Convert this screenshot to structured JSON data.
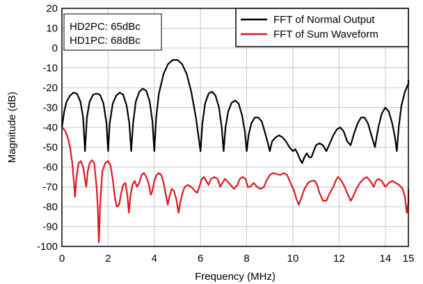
{
  "chart_data": {
    "type": "line",
    "xlabel": "Frequency (MHz)",
    "ylabel": "Magnitude (dB)",
    "xlim": [
      0,
      15
    ],
    "ylim": [
      -100,
      20
    ],
    "xticks": [
      0,
      2,
      4,
      6,
      8,
      10,
      12,
      14,
      15
    ],
    "yticks": [
      20,
      10,
      0,
      -10,
      -20,
      -30,
      -40,
      -50,
      -60,
      -70,
      -80,
      -90,
      -100
    ],
    "grid": true,
    "legend_position": "top-right",
    "annotations": [
      "HD2PC: 65dBc",
      "HD1PC: 68dBc"
    ],
    "series": [
      {
        "name": "FFT of Normal Output",
        "color": "#000000",
        "points": [
          [
            0,
            -40
          ],
          [
            0.1,
            -32
          ],
          [
            0.2,
            -27
          ],
          [
            0.35,
            -24
          ],
          [
            0.5,
            -22.5
          ],
          [
            0.65,
            -23
          ],
          [
            0.8,
            -27
          ],
          [
            0.92,
            -35
          ],
          [
            1.0,
            -52
          ],
          [
            1.08,
            -35
          ],
          [
            1.2,
            -27
          ],
          [
            1.35,
            -23.5
          ],
          [
            1.5,
            -23
          ],
          [
            1.65,
            -23.5
          ],
          [
            1.8,
            -28
          ],
          [
            1.93,
            -38
          ],
          [
            2.0,
            -52
          ],
          [
            2.07,
            -38
          ],
          [
            2.2,
            -28
          ],
          [
            2.35,
            -24
          ],
          [
            2.5,
            -22.5
          ],
          [
            2.65,
            -23.5
          ],
          [
            2.8,
            -29
          ],
          [
            2.92,
            -38
          ],
          [
            3.0,
            -52
          ],
          [
            3.08,
            -38
          ],
          [
            3.2,
            -27
          ],
          [
            3.35,
            -22
          ],
          [
            3.5,
            -20.5
          ],
          [
            3.65,
            -21.5
          ],
          [
            3.8,
            -27
          ],
          [
            3.92,
            -37
          ],
          [
            4.0,
            -52
          ],
          [
            4.08,
            -35
          ],
          [
            4.2,
            -23
          ],
          [
            4.4,
            -13
          ],
          [
            4.6,
            -8
          ],
          [
            4.8,
            -6
          ],
          [
            5.0,
            -6
          ],
          [
            5.2,
            -8
          ],
          [
            5.4,
            -13
          ],
          [
            5.6,
            -22
          ],
          [
            5.8,
            -35
          ],
          [
            5.92,
            -45
          ],
          [
            6.0,
            -52
          ],
          [
            6.08,
            -38
          ],
          [
            6.2,
            -28
          ],
          [
            6.35,
            -23
          ],
          [
            6.5,
            -22
          ],
          [
            6.65,
            -24
          ],
          [
            6.8,
            -30
          ],
          [
            6.92,
            -40
          ],
          [
            7.0,
            -52
          ],
          [
            7.08,
            -40
          ],
          [
            7.2,
            -32
          ],
          [
            7.35,
            -27.5
          ],
          [
            7.5,
            -26.5
          ],
          [
            7.65,
            -28
          ],
          [
            7.8,
            -34
          ],
          [
            7.92,
            -42
          ],
          [
            8.0,
            -52
          ],
          [
            8.08,
            -44
          ],
          [
            8.2,
            -38
          ],
          [
            8.35,
            -35
          ],
          [
            8.5,
            -35
          ],
          [
            8.65,
            -37
          ],
          [
            8.8,
            -43
          ],
          [
            8.92,
            -48
          ],
          [
            9.0,
            -52
          ],
          [
            9.1,
            -47
          ],
          [
            9.25,
            -45
          ],
          [
            9.4,
            -44
          ],
          [
            9.55,
            -45
          ],
          [
            9.7,
            -47
          ],
          [
            9.85,
            -50
          ],
          [
            10.0,
            -52
          ],
          [
            10.1,
            -51
          ],
          [
            10.2,
            -53
          ],
          [
            10.3,
            -56
          ],
          [
            10.4,
            -58
          ],
          [
            10.5,
            -55
          ],
          [
            10.6,
            -53
          ],
          [
            10.7,
            -55
          ],
          [
            10.8,
            -55
          ],
          [
            10.9,
            -52
          ],
          [
            11.0,
            -49
          ],
          [
            11.15,
            -48
          ],
          [
            11.3,
            -49
          ],
          [
            11.45,
            -52
          ],
          [
            11.6,
            -48
          ],
          [
            11.75,
            -44
          ],
          [
            11.9,
            -41
          ],
          [
            12.05,
            -40
          ],
          [
            12.2,
            -42
          ],
          [
            12.35,
            -47
          ],
          [
            12.5,
            -49
          ],
          [
            12.65,
            -43
          ],
          [
            12.8,
            -38
          ],
          [
            12.95,
            -35
          ],
          [
            13.1,
            -35
          ],
          [
            13.25,
            -38
          ],
          [
            13.4,
            -44
          ],
          [
            13.55,
            -50
          ],
          [
            13.7,
            -40
          ],
          [
            13.85,
            -33
          ],
          [
            14.0,
            -30
          ],
          [
            14.15,
            -32
          ],
          [
            14.3,
            -38
          ],
          [
            14.42,
            -45
          ],
          [
            14.5,
            -52
          ],
          [
            14.58,
            -40
          ],
          [
            14.7,
            -29
          ],
          [
            14.85,
            -22
          ],
          [
            15.0,
            -18
          ],
          [
            15.1,
            -16.5
          ],
          [
            15.2,
            -16
          ]
        ]
      },
      {
        "name": "FFT of Sum Waveform",
        "color": "#e8141c",
        "points": [
          [
            0,
            -40
          ],
          [
            0.05,
            -40.5
          ],
          [
            0.15,
            -42
          ],
          [
            0.25,
            -45
          ],
          [
            0.35,
            -50
          ],
          [
            0.45,
            -58
          ],
          [
            0.52,
            -68
          ],
          [
            0.57,
            -75
          ],
          [
            0.63,
            -65
          ],
          [
            0.72,
            -58
          ],
          [
            0.82,
            -57
          ],
          [
            0.92,
            -60
          ],
          [
            1.0,
            -66
          ],
          [
            1.05,
            -70
          ],
          [
            1.12,
            -62
          ],
          [
            1.2,
            -58
          ],
          [
            1.3,
            -56.5
          ],
          [
            1.4,
            -58
          ],
          [
            1.5,
            -70
          ],
          [
            1.55,
            -80
          ],
          [
            1.6,
            -98
          ],
          [
            1.65,
            -80
          ],
          [
            1.75,
            -62
          ],
          [
            1.88,
            -58
          ],
          [
            2.0,
            -57
          ],
          [
            2.1,
            -59
          ],
          [
            2.2,
            -66
          ],
          [
            2.3,
            -76
          ],
          [
            2.38,
            -80
          ],
          [
            2.48,
            -79
          ],
          [
            2.55,
            -74
          ],
          [
            2.65,
            -69
          ],
          [
            2.75,
            -68
          ],
          [
            2.83,
            -74
          ],
          [
            2.9,
            -83
          ],
          [
            2.96,
            -75
          ],
          [
            3.05,
            -69
          ],
          [
            3.15,
            -67
          ],
          [
            3.25,
            -70
          ],
          [
            3.35,
            -68
          ],
          [
            3.45,
            -64
          ],
          [
            3.55,
            -63
          ],
          [
            3.65,
            -65
          ],
          [
            3.75,
            -68
          ],
          [
            3.85,
            -74
          ],
          [
            3.92,
            -72
          ],
          [
            4.0,
            -67
          ],
          [
            4.1,
            -64
          ],
          [
            4.2,
            -63
          ],
          [
            4.3,
            -64
          ],
          [
            4.4,
            -68
          ],
          [
            4.5,
            -74
          ],
          [
            4.58,
            -79
          ],
          [
            4.65,
            -75
          ],
          [
            4.75,
            -71
          ],
          [
            4.85,
            -72
          ],
          [
            4.95,
            -76
          ],
          [
            5.05,
            -83
          ],
          [
            5.12,
            -78
          ],
          [
            5.22,
            -73
          ],
          [
            5.32,
            -70
          ],
          [
            5.45,
            -69
          ],
          [
            5.6,
            -70
          ],
          [
            5.75,
            -72
          ],
          [
            5.85,
            -73
          ],
          [
            5.95,
            -70
          ],
          [
            6.05,
            -66
          ],
          [
            6.15,
            -65
          ],
          [
            6.25,
            -67
          ],
          [
            6.35,
            -69
          ],
          [
            6.45,
            -66
          ],
          [
            6.6,
            -65
          ],
          [
            6.75,
            -66
          ],
          [
            6.85,
            -70
          ],
          [
            6.95,
            -68
          ],
          [
            7.05,
            -66
          ],
          [
            7.15,
            -67
          ],
          [
            7.3,
            -69
          ],
          [
            7.45,
            -71
          ],
          [
            7.6,
            -69
          ],
          [
            7.7,
            -66
          ],
          [
            7.82,
            -65
          ],
          [
            7.95,
            -66
          ],
          [
            8.05,
            -70
          ],
          [
            8.15,
            -70
          ],
          [
            8.3,
            -68
          ],
          [
            8.45,
            -70
          ],
          [
            8.6,
            -71
          ],
          [
            8.75,
            -70
          ],
          [
            8.85,
            -67
          ],
          [
            9.0,
            -64
          ],
          [
            9.15,
            -63
          ],
          [
            9.3,
            -63.5
          ],
          [
            9.45,
            -64
          ],
          [
            9.6,
            -63
          ],
          [
            9.75,
            -64
          ],
          [
            9.9,
            -68
          ],
          [
            10.05,
            -72
          ],
          [
            10.15,
            -76
          ],
          [
            10.25,
            -79
          ],
          [
            10.35,
            -76
          ],
          [
            10.5,
            -71
          ],
          [
            10.65,
            -68
          ],
          [
            10.8,
            -67
          ],
          [
            10.95,
            -67
          ],
          [
            11.05,
            -69
          ],
          [
            11.15,
            -73
          ],
          [
            11.3,
            -77
          ],
          [
            11.45,
            -77
          ],
          [
            11.6,
            -73
          ],
          [
            11.75,
            -70
          ],
          [
            11.85,
            -67
          ],
          [
            11.95,
            -65
          ],
          [
            12.05,
            -66
          ],
          [
            12.2,
            -69
          ],
          [
            12.35,
            -73
          ],
          [
            12.5,
            -77
          ],
          [
            12.6,
            -75
          ],
          [
            12.75,
            -71
          ],
          [
            12.9,
            -68
          ],
          [
            13.05,
            -66
          ],
          [
            13.2,
            -65
          ],
          [
            13.35,
            -67
          ],
          [
            13.5,
            -70
          ],
          [
            13.6,
            -67
          ],
          [
            13.7,
            -66
          ],
          [
            13.85,
            -67
          ],
          [
            14.0,
            -70
          ],
          [
            14.15,
            -68
          ],
          [
            14.3,
            -67
          ],
          [
            14.45,
            -68
          ],
          [
            14.6,
            -69
          ],
          [
            14.75,
            -71
          ],
          [
            14.85,
            -75
          ],
          [
            14.93,
            -83
          ],
          [
            15.0,
            -78
          ],
          [
            15.1,
            -73
          ],
          [
            15.2,
            -71
          ]
        ]
      }
    ]
  }
}
